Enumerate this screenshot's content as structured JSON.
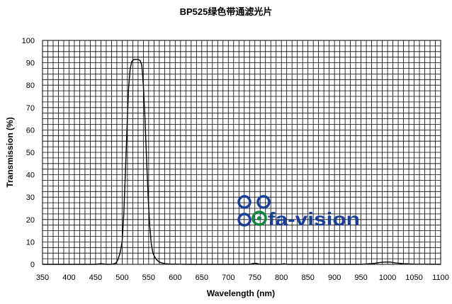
{
  "chart_data": {
    "type": "line",
    "title": "BP525绿色带通滤光片",
    "xlabel": "Wavelength (nm)",
    "ylabel": "Transmission (%)",
    "xlim": [
      350,
      1100
    ],
    "ylim": [
      0,
      100
    ],
    "x_ticks": [
      350,
      400,
      450,
      500,
      550,
      600,
      650,
      700,
      750,
      800,
      850,
      900,
      950,
      1000,
      1050,
      1100
    ],
    "y_ticks": [
      0,
      10,
      20,
      30,
      40,
      50,
      60,
      70,
      80,
      90,
      100
    ],
    "grid": true,
    "series": [
      {
        "x": [
          350,
          400,
          450,
          460,
          470,
          480,
          488,
          492,
          496,
          500,
          503,
          506,
          509,
          512,
          515,
          518,
          520,
          523,
          526,
          530,
          534,
          537,
          540,
          543,
          546,
          549,
          552,
          555,
          558,
          562,
          566,
          570,
          575,
          580,
          590,
          600,
          620,
          650,
          700,
          740,
          745,
          750,
          755,
          760,
          800,
          805,
          810,
          850,
          900,
          950,
          975,
          985,
          995,
          1005,
          1015,
          1030,
          1050,
          1100
        ],
        "y": [
          0,
          0,
          0,
          0.3,
          0,
          0,
          0.5,
          2,
          5,
          10,
          22,
          40,
          60,
          78,
          87,
          90.5,
          91,
          91.5,
          91.5,
          91.5,
          91,
          89,
          80,
          65,
          47,
          30,
          17,
          9,
          5,
          3,
          1.8,
          1.0,
          0.6,
          0.3,
          0.1,
          0.1,
          0,
          0,
          0,
          0,
          0.3,
          0.5,
          0.3,
          0,
          0,
          0.3,
          0,
          0,
          0,
          0,
          0.4,
          0.8,
          1.0,
          1.0,
          0.6,
          0.3,
          0.1,
          0
        ]
      }
    ]
  },
  "logo": {
    "text": "fa-vision",
    "color": "#1a3f9a",
    "accent": "#0a8a3a"
  }
}
